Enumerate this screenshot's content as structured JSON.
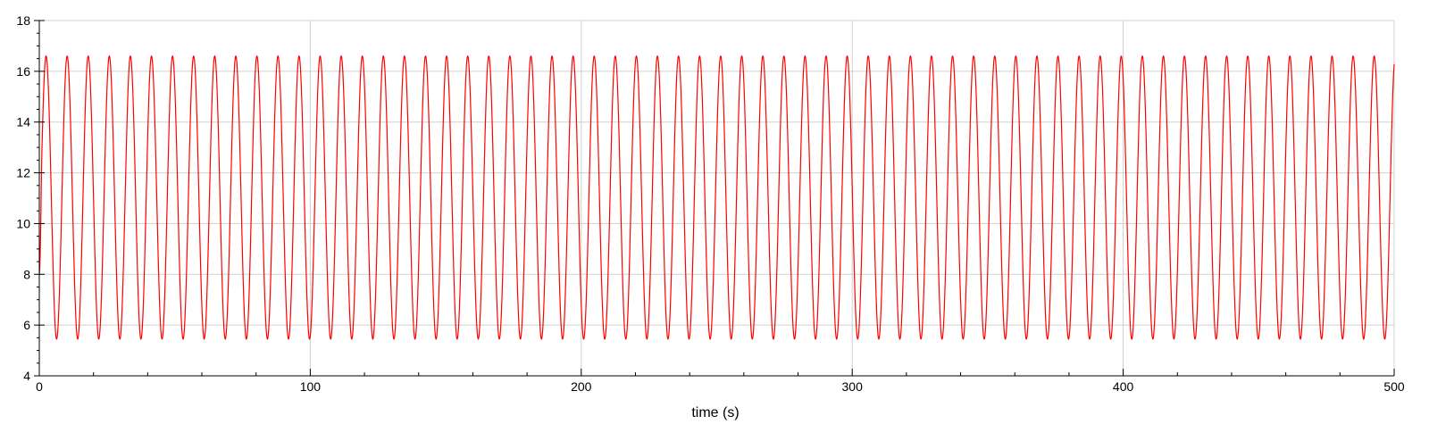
{
  "chart_data": {
    "type": "line",
    "title": "",
    "xlabel": "time (s)",
    "ylabel": "",
    "xlim": [
      0,
      500
    ],
    "ylim": [
      4,
      18
    ],
    "x_ticks": [
      0,
      100,
      200,
      300,
      400,
      500
    ],
    "x_tick_labels": [
      "0",
      "100",
      "200",
      "300",
      "400",
      "500"
    ],
    "y_ticks": [
      4,
      6,
      8,
      10,
      12,
      14,
      16,
      18
    ],
    "y_tick_labels": [
      "4",
      "6",
      "8",
      "10",
      "12",
      "14",
      "16",
      "18"
    ],
    "grid": true,
    "legend": "none",
    "series": [
      {
        "color": "#ff0000",
        "form": "periodic oscillation",
        "start_value": 8,
        "max": 16.6,
        "min": 5.45,
        "period": 7.78,
        "first_peak_x": 2.5
      }
    ]
  },
  "colors": {
    "background": "#ffffff",
    "grid": "#d0d0d0",
    "axis": "#000000",
    "series": "#ff0000"
  }
}
